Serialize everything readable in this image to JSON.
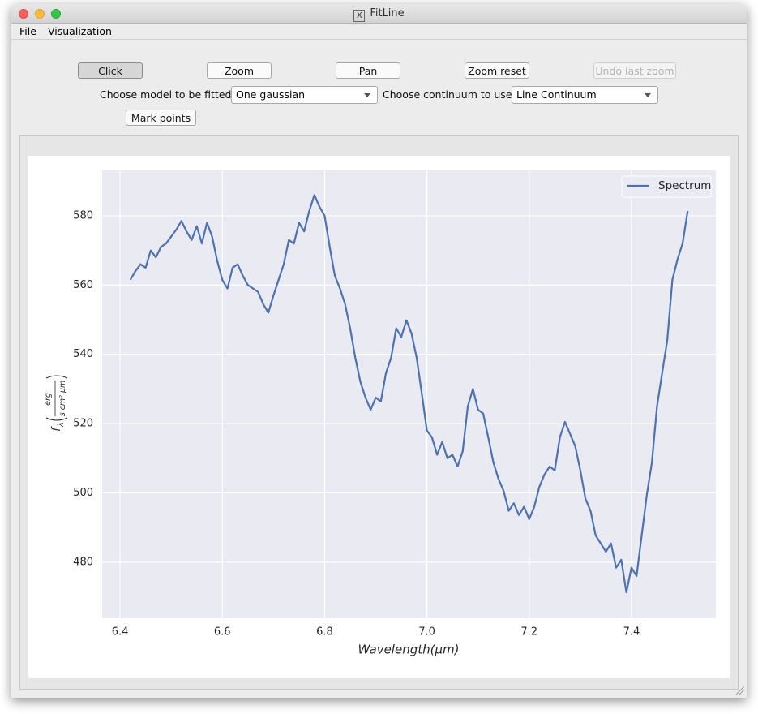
{
  "window": {
    "title": "FitLine"
  },
  "menu": [
    "File",
    "Visualization"
  ],
  "toolbar": {
    "buttons": [
      {
        "label": "Click",
        "checked": true,
        "enabled": true
      },
      {
        "label": "Zoom",
        "checked": false,
        "enabled": true
      },
      {
        "label": "Pan",
        "checked": false,
        "enabled": true
      },
      {
        "label": "Zoom reset",
        "checked": false,
        "enabled": true
      },
      {
        "label": "Undo last zoom",
        "checked": false,
        "enabled": false
      }
    ]
  },
  "controls": {
    "model_label": "Choose model to be fitted",
    "model_value": "One gaussian",
    "continuum_label": "Choose continuum to use",
    "continuum_value": "Line Continuum",
    "mark_button": "Mark points"
  },
  "chart_data": {
    "type": "line",
    "xlabel": "Wavelength(μm)",
    "ylabel": {
      "symbol": "f",
      "subscript": "λ",
      "numerator": "erg",
      "denominator": "s cm² μm"
    },
    "x": [
      6.42,
      6.43,
      6.44,
      6.45,
      6.46,
      6.47,
      6.48,
      6.49,
      6.5,
      6.51,
      6.52,
      6.53,
      6.54,
      6.55,
      6.56,
      6.57,
      6.58,
      6.59,
      6.6,
      6.61,
      6.62,
      6.63,
      6.64,
      6.65,
      6.66,
      6.67,
      6.68,
      6.69,
      6.7,
      6.71,
      6.72,
      6.73,
      6.74,
      6.75,
      6.76,
      6.77,
      6.78,
      6.79,
      6.8,
      6.81,
      6.82,
      6.83,
      6.84,
      6.85,
      6.86,
      6.87,
      6.88,
      6.89,
      6.9,
      6.91,
      6.92,
      6.93,
      6.94,
      6.95,
      6.96,
      6.97,
      6.98,
      6.99,
      7.0,
      7.01,
      7.02,
      7.03,
      7.04,
      7.05,
      7.06,
      7.07,
      7.08,
      7.09,
      7.1,
      7.11,
      7.12,
      7.13,
      7.14,
      7.15,
      7.16,
      7.17,
      7.18,
      7.19,
      7.2,
      7.21,
      7.22,
      7.23,
      7.24,
      7.25,
      7.26,
      7.27,
      7.28,
      7.29,
      7.3,
      7.31,
      7.32,
      7.33,
      7.34,
      7.35,
      7.36,
      7.37,
      7.38,
      7.39,
      7.4,
      7.41,
      7.42,
      7.43,
      7.44,
      7.45,
      7.46,
      7.47,
      7.48,
      7.49,
      7.5,
      7.51
    ],
    "series": [
      {
        "name": "Spectrum",
        "color": "#4c72b0",
        "values": [
          561.5,
          564,
          566,
          565,
          570,
          568,
          571,
          572,
          574,
          576,
          578.5,
          575.5,
          573,
          577,
          572,
          578,
          574,
          567,
          561.5,
          559,
          565,
          566,
          562.7,
          560,
          559,
          558,
          554.5,
          552,
          557,
          561.5,
          566,
          573,
          572,
          578,
          575.5,
          581.4,
          586,
          582.6,
          580,
          571,
          562.7,
          559,
          554.5,
          547.5,
          539,
          532,
          527.5,
          524,
          527.5,
          526.4,
          534.6,
          539,
          547.5,
          545,
          549.8,
          546,
          539,
          528.7,
          518,
          516,
          511,
          514.7,
          510,
          511,
          507.6,
          512,
          525,
          530,
          524,
          522.9,
          516,
          508.8,
          504,
          500.6,
          494.8,
          497,
          493.6,
          496,
          492.4,
          496,
          501.8,
          505.3,
          507.6,
          506.5,
          516,
          520.5,
          517,
          513.5,
          506.5,
          498.3,
          494.8,
          487.7,
          485.4,
          483,
          485.4,
          478.4,
          480.7,
          471.3,
          478.4,
          476,
          487.7,
          499.4,
          508.8,
          525,
          534.6,
          544,
          561.5,
          567.4,
          572,
          581.4
        ]
      }
    ],
    "xlim": [
      6.365,
      7.565
    ],
    "ylim": [
      463.8,
      593.1
    ],
    "xticks": [
      6.4,
      6.6,
      6.8,
      {
        "value": 7.0,
        "label": "7.0"
      },
      7.2,
      7.4
    ],
    "yticks": [
      480,
      500,
      520,
      540,
      560,
      580
    ],
    "grid": true,
    "legend": "upper right"
  }
}
